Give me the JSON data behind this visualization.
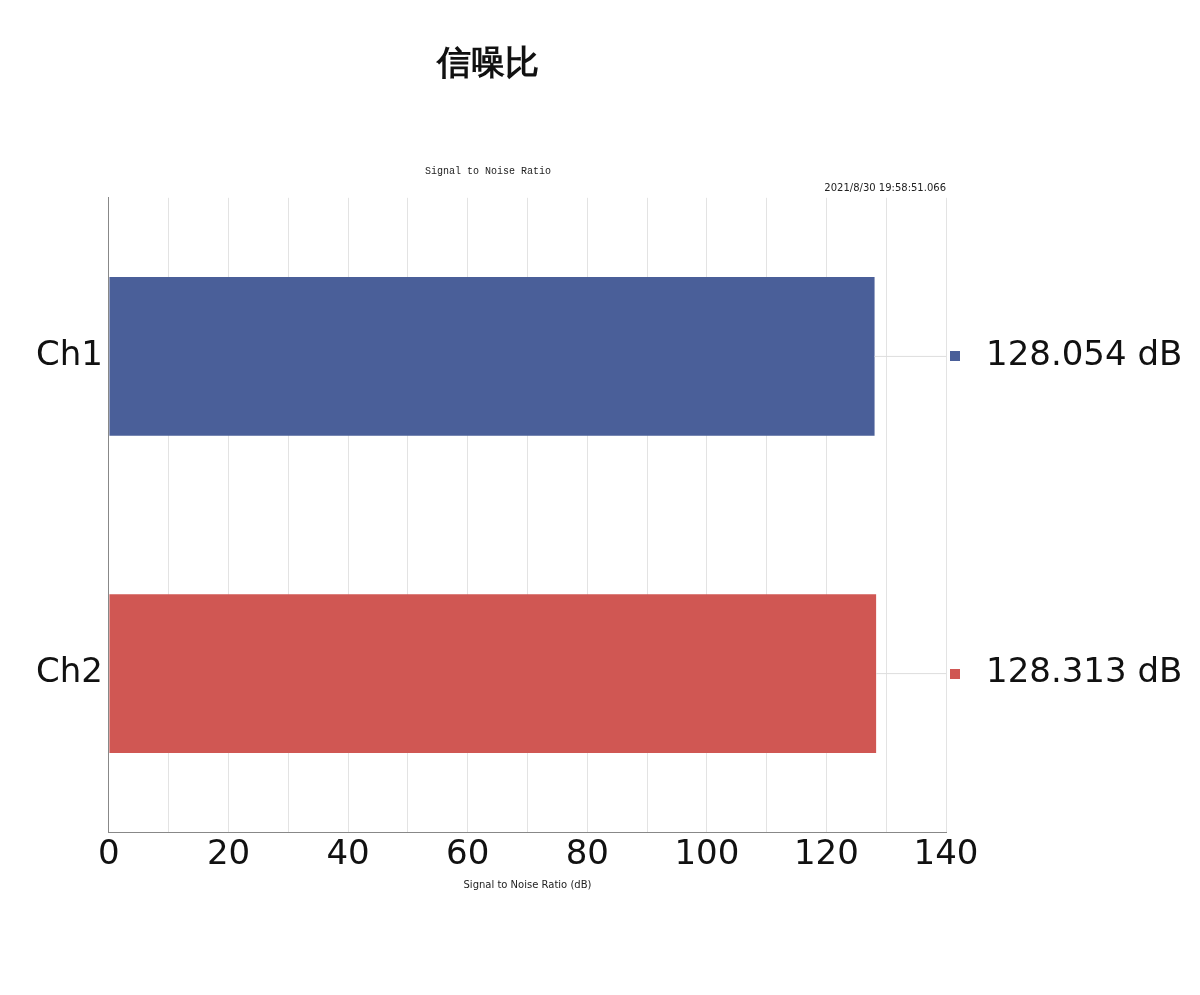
{
  "chart_data": {
    "type": "bar",
    "orientation": "horizontal",
    "title": "信噪比",
    "subtitle": "Signal to Noise Ratio",
    "xlabel": "Signal to Noise Ratio (dB)",
    "annotations": [
      "2021/8/30 19:58:51.066"
    ],
    "categories": [
      "Ch1",
      "Ch2"
    ],
    "values": [
      128.054,
      128.313
    ],
    "colors": [
      "#4a5f99",
      "#d05753"
    ],
    "value_labels": [
      "128.054 dB",
      "128.313 dB"
    ],
    "xlim": [
      0,
      140
    ],
    "xticks": [
      0,
      {
        "value": 10,
        "label": null
      },
      20,
      {
        "value": 30,
        "label": null
      },
      40,
      {
        "value": 50,
        "label": null
      },
      60,
      {
        "value": 70,
        "label": null
      },
      80,
      {
        "value": 90,
        "label": null
      },
      100,
      {
        "value": 110,
        "label": null
      },
      120,
      {
        "value": 130,
        "label": null
      },
      140
    ],
    "grid": "x",
    "legend": false
  }
}
